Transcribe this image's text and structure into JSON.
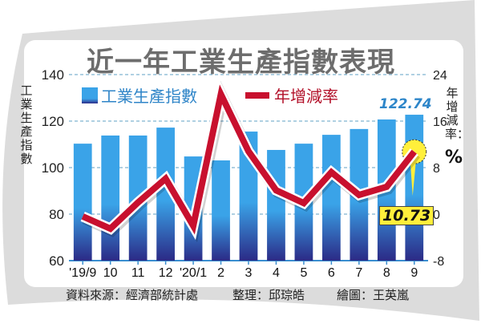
{
  "title": "近一年工業生產指數表現",
  "left_axis_label": "工業生產指數",
  "right_axis_label": "年增減率：",
  "right_axis_unit": "%",
  "legend": [
    {
      "label": "工業生產指數",
      "color": "#3aa3e8"
    },
    {
      "label": "年增減率",
      "color": "#c8102e"
    }
  ],
  "annotations": {
    "last_index": "122.74",
    "last_rate": "10.73"
  },
  "footer": {
    "source": "資料來源：經濟部統計處",
    "editor": "整理：邱琮皓",
    "artist": "繪圖：王英嵐"
  },
  "chart_data": {
    "type": "bar",
    "title": "近一年工業生產指數表現",
    "categories": [
      "'19/9",
      "10",
      "11",
      "12",
      "'20/1",
      "2",
      "3",
      "4",
      "5",
      "6",
      "7",
      "8",
      "9"
    ],
    "series": [
      {
        "name": "工業生產指數",
        "type": "bar",
        "axis": "left",
        "values": [
          110.3,
          113.8,
          113.8,
          117.2,
          104.8,
          103.1,
          115.5,
          107.6,
          110.3,
          114.1,
          116.6,
          120.7,
          122.74
        ]
      },
      {
        "name": "年增減率",
        "type": "line",
        "axis": "right",
        "values": [
          -0.4,
          -2.5,
          2.0,
          6.1,
          -2.0,
          20.6,
          10.8,
          4.1,
          1.9,
          7.2,
          3.3,
          4.7,
          10.73
        ]
      }
    ],
    "ylabel": "工業生產指數",
    "y2label": "年增減率：%",
    "ylim": [
      60,
      140
    ],
    "yticks": [
      60,
      80,
      100,
      120,
      140
    ],
    "y2lim": [
      -8,
      24
    ],
    "y2ticks": [
      -8,
      0,
      8,
      16,
      24
    ],
    "grid": true,
    "legend_position": "top-inside"
  },
  "colors": {
    "bar_top": "#3aa3e8",
    "bar_bottom": "#2b2a86",
    "line": "#c8102e",
    "grid": "#7fb3d1",
    "callout": "#ffef3b"
  }
}
